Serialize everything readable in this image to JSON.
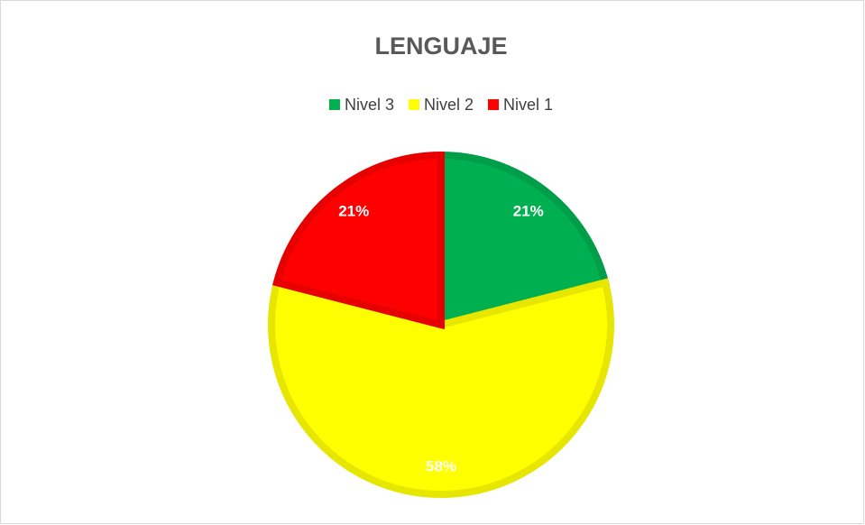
{
  "chart_data": {
    "type": "pie",
    "title": "LENGUAJE",
    "categories": [
      "Nivel 3",
      "Nivel 2",
      "Nivel 1"
    ],
    "values": [
      21,
      58,
      21
    ],
    "value_labels": [
      "21%",
      "58%",
      "21%"
    ],
    "colors": [
      "#00b050",
      "#ffff00",
      "#ff0000"
    ],
    "legend": "top"
  }
}
